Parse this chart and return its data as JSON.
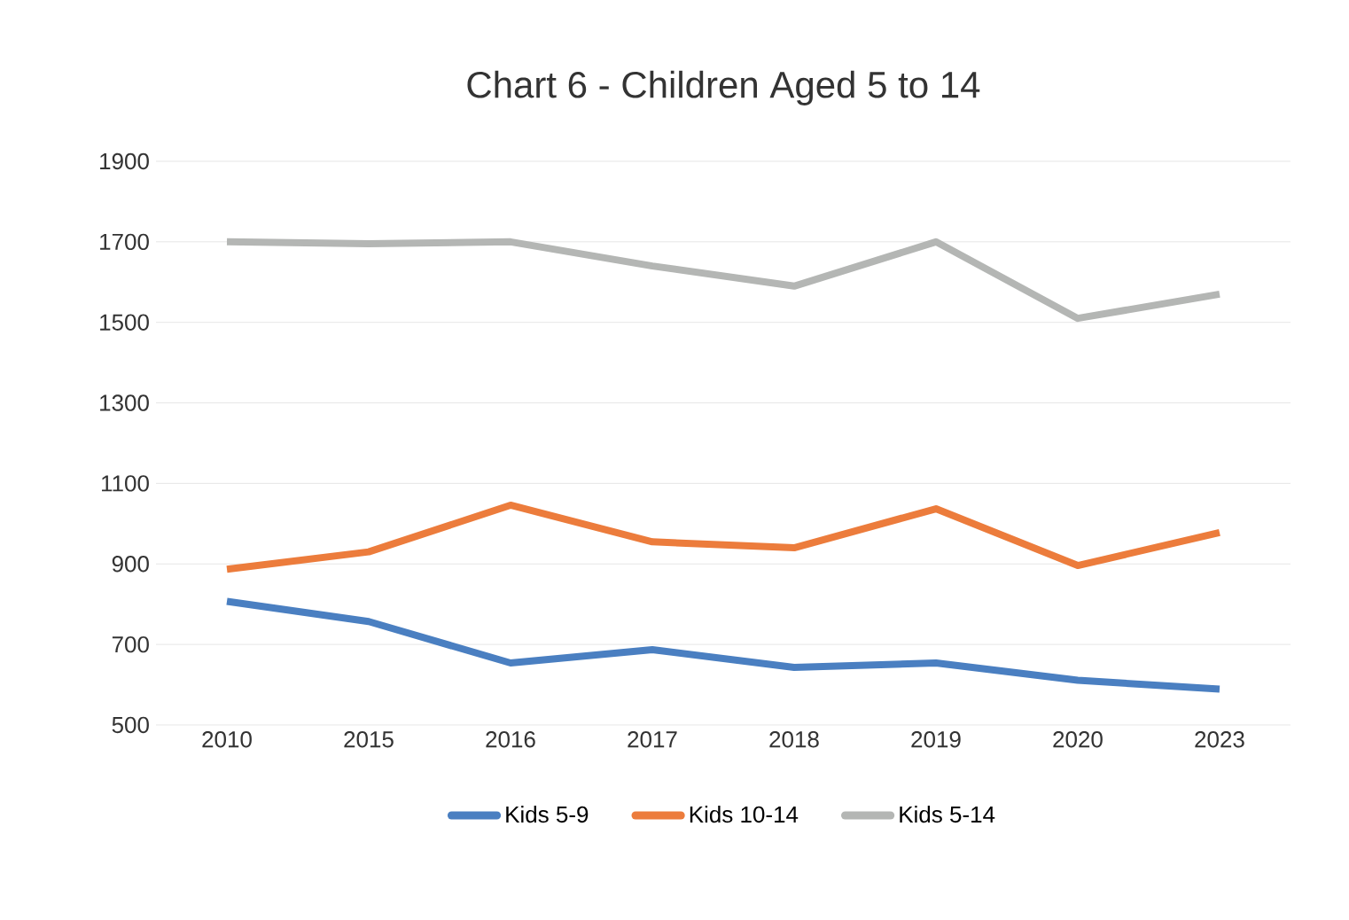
{
  "chart_data": {
    "type": "line",
    "title": "Chart 6 - Children Aged 5 to 14",
    "categories": [
      "2010",
      "2015",
      "2016",
      "2017",
      "2018",
      "2019",
      "2020",
      "2023"
    ],
    "series": [
      {
        "name": "Kids 5-9",
        "color": "#4a7fc1",
        "values": [
          807,
          757,
          654,
          687,
          643,
          654,
          611,
          589
        ]
      },
      {
        "name": "Kids 10-14",
        "color": "#ec7c3c",
        "values": [
          887,
          930,
          1046,
          955,
          940,
          1037,
          896,
          978
        ]
      },
      {
        "name": "Kids 5-14",
        "color": "#b4b6b4",
        "values": [
          1700,
          1695,
          1700,
          1640,
          1590,
          1700,
          1510,
          1570
        ]
      }
    ],
    "ylim": [
      500,
      1900
    ],
    "yticks": [
      500,
      700,
      900,
      1100,
      1300,
      1500,
      1700,
      1900
    ],
    "grid": "y",
    "legend": "bottom",
    "marker": "none",
    "line_style": "solid"
  }
}
